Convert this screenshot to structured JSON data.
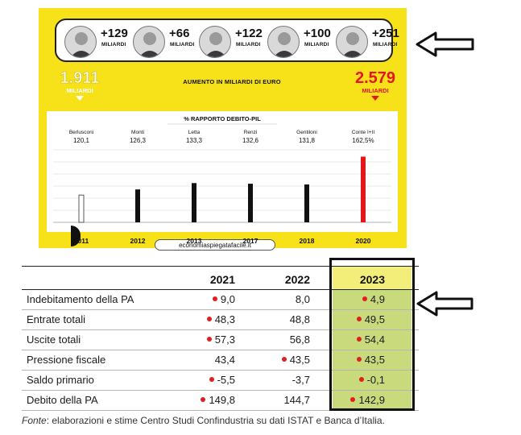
{
  "infographic": {
    "faces": [
      {
        "increase": "+129",
        "unit": "MILIARDI",
        "icon": "portrait-icon"
      },
      {
        "increase": "+66",
        "unit": "MILIARDI",
        "icon": "portrait-icon"
      },
      {
        "increase": "+122",
        "unit": "MILIARDI",
        "icon": "portrait-icon"
      },
      {
        "increase": "+100",
        "unit": "MILIARDI",
        "icon": "portrait-icon"
      },
      {
        "increase": "+251",
        "unit": "MILIARDI",
        "icon": "portrait-icon"
      }
    ],
    "left_total": {
      "value": "1.911",
      "unit": "MILIARDI"
    },
    "right_total": {
      "value": "2.579",
      "unit": "MILIARDI"
    },
    "center_title": "AUMENTO IN MILIARDI DI EURO",
    "watermark": "economiaspiegatafacile.it",
    "colors": {
      "background": "#f7e21a",
      "highlight": "#e4151b"
    }
  },
  "chart_data": {
    "type": "bar",
    "title": "% RAPPORTO DEBITO-PIL",
    "categories": [
      "2011",
      "2012",
      "2013",
      "2017",
      "2018",
      "2020"
    ],
    "leaders": [
      "Berlusconi",
      "Monti",
      "Letta",
      "Renzi",
      "Gentiloni",
      "Conte I+II"
    ],
    "value_labels": [
      "120,1",
      "126,3",
      "133,3",
      "132,6",
      "131,8",
      "162,5%"
    ],
    "values": [
      120.1,
      126.3,
      133.3,
      132.6,
      131.8,
      162.5
    ],
    "bar_styles": [
      "outline",
      "black",
      "black",
      "black",
      "black",
      "red"
    ],
    "ylim": [
      90,
      170
    ],
    "grid": true
  },
  "table": {
    "columns": [
      "2021",
      "2022",
      "2023"
    ],
    "rows": [
      {
        "label": "Indebitamento della PA",
        "v2021": "9,0",
        "v2022": "8,0",
        "v2023": "4,9",
        "dots": [
          true,
          false,
          true
        ]
      },
      {
        "label": "Entrate totali",
        "v2021": "48,3",
        "v2022": "48,8",
        "v2023": "49,5",
        "dots": [
          true,
          false,
          true
        ]
      },
      {
        "label": "Uscite totali",
        "v2021": "57,3",
        "v2022": "56,8",
        "v2023": "54,4",
        "dots": [
          true,
          false,
          true
        ]
      },
      {
        "label": "Pressione fiscale",
        "v2021": "43,4",
        "v2022": "43,5",
        "v2023": "43,5",
        "dots": [
          false,
          true,
          true
        ]
      },
      {
        "label": "Saldo primario",
        "v2021": "-5,5",
        "v2022": "-3,7",
        "v2023": "-0,1",
        "dots": [
          true,
          false,
          true
        ]
      },
      {
        "label": "Debito della PA",
        "v2021": "149,8",
        "v2022": "144,7",
        "v2023": "142,9",
        "dots": [
          true,
          false,
          true
        ]
      }
    ],
    "highlight_colors": {
      "header": "#f3ee7a",
      "column": "#c9da7d",
      "dot": "#e02020"
    }
  },
  "source": {
    "prefix": "Fonte",
    "text": ": elaborazioni e stime Centro Studi Confindustria su dati ISTAT e Banca d’Italia."
  },
  "annotations": {
    "arrow_icon": "left-arrow-icon"
  }
}
